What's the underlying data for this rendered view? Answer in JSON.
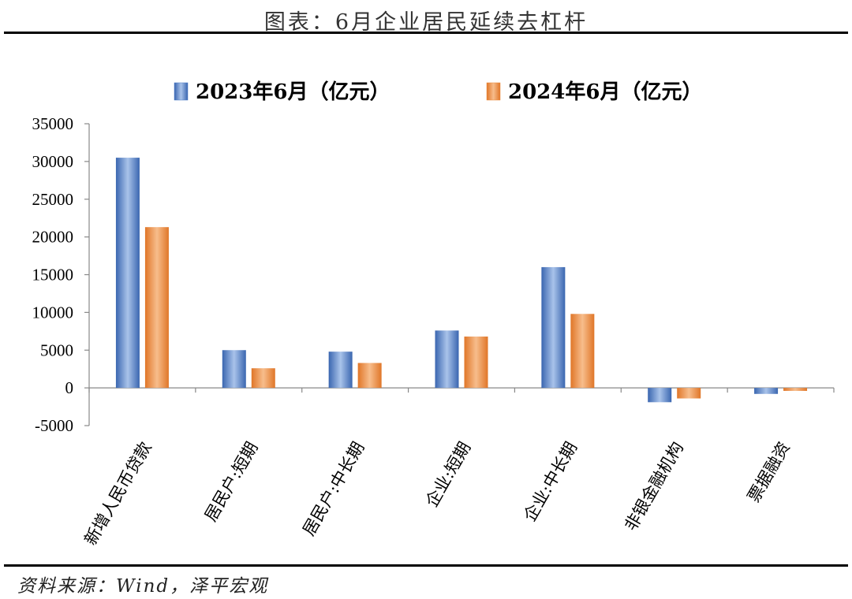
{
  "page": {
    "title": "图表：6月企业居民延续去杠杆",
    "source": "资料来源：Wind，泽平宏观"
  },
  "colors": {
    "series_2023": "#4a7cc7",
    "series_2024": "#ed8a3c"
  },
  "chart_data": {
    "type": "bar",
    "title": "",
    "xlabel": "",
    "ylabel": "",
    "categories": [
      "新增人民币贷款",
      "居民户:短期",
      "居民户:中长期",
      "企业:短期",
      "企业:中长期",
      "非银金融机构",
      "票据融资"
    ],
    "series": [
      {
        "name": "2023年6月（亿元）",
        "values": [
          30500,
          5000,
          4800,
          7600,
          16000,
          -1900,
          -800
        ]
      },
      {
        "name": "2024年6月（亿元）",
        "values": [
          21300,
          2600,
          3300,
          6800,
          9800,
          -1400,
          -400
        ]
      }
    ],
    "ylim": [
      -5000,
      35000
    ],
    "yticks": [
      -5000,
      0,
      5000,
      10000,
      15000,
      20000,
      25000,
      30000,
      35000
    ],
    "grid": false,
    "legend_position": "top"
  }
}
